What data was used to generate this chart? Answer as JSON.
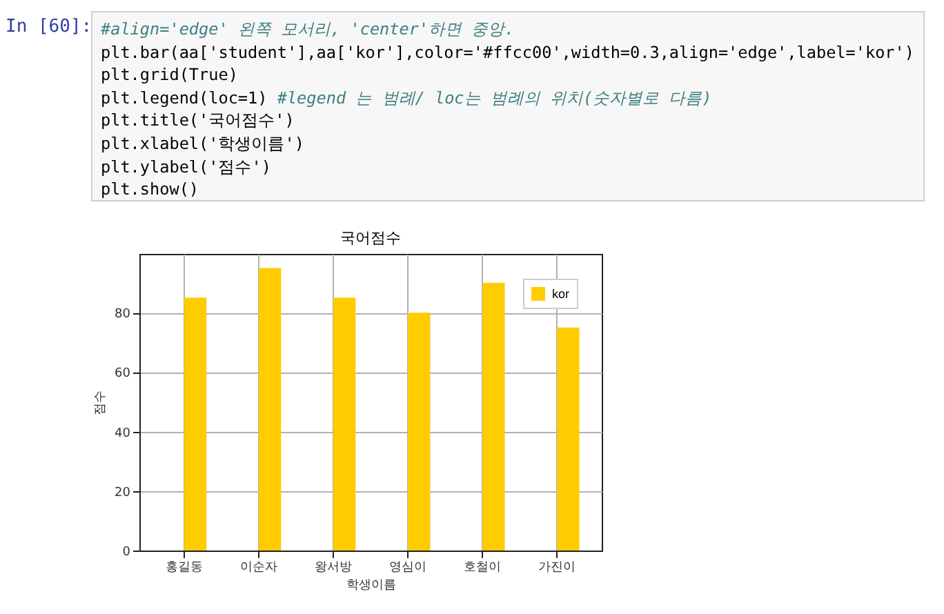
{
  "chart_data": {
    "type": "bar",
    "title": "국어점수",
    "xlabel": "학생이름",
    "ylabel": "점수",
    "categories": [
      "홍길동",
      "이순자",
      "왕서방",
      "영심이",
      "호철이",
      "가진이"
    ],
    "series": [
      {
        "name": "kor",
        "color": "#ffcc00",
        "values": [
          85,
          95,
          85,
          80,
          90,
          75
        ]
      }
    ],
    "ylim": [
      0,
      99.75
    ],
    "yticks": [
      0,
      20,
      40,
      60,
      80
    ],
    "grid": true,
    "legend": "top right",
    "annotations": [
      "In [60]:",
      "#align='edge' 왼쪽 모서리, 'center'하면 중앙.",
      "plt.bar(aa['student'],aa['kor'],color='#ffcc00',width=0.3,align='edge',label='kor')",
      "plt.grid(True)",
      "plt.legend(loc=1) #legend 는 범례/ loc는 범례의 위치(숫자별로 다름)",
      "plt.title('국어점수')",
      "plt.xlabel('학생이름')",
      "plt.ylabel('점수')",
      "plt.show()"
    ]
  }
}
